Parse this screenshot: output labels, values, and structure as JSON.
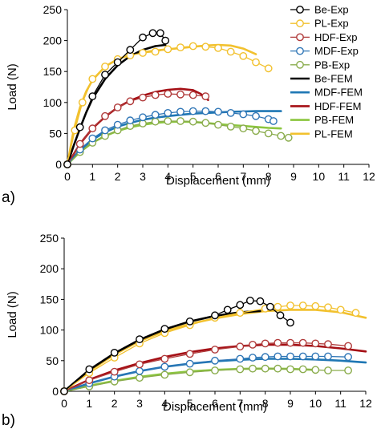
{
  "chart_data": [
    {
      "type": "line",
      "panel_label": "a)",
      "xlabel": "Displacement (mm)",
      "ylabel": "Load (N)",
      "xlim": [
        0,
        12
      ],
      "ylim": [
        0,
        250
      ],
      "xticks": [
        0,
        1,
        2,
        3,
        4,
        5,
        6,
        7,
        8,
        9,
        10,
        11,
        12
      ],
      "yticks": [
        0,
        50,
        100,
        150,
        200,
        250
      ],
      "grid": false,
      "legend_position": "right",
      "legend": [
        {
          "name": "Be-Exp",
          "color": "#000000",
          "style": "markers"
        },
        {
          "name": "PL-Exp",
          "color": "#f2c12e",
          "style": "markers"
        },
        {
          "name": "HDF-Exp",
          "color": "#b03a3a",
          "style": "markers"
        },
        {
          "name": "MDF-Exp",
          "color": "#2e75b6",
          "style": "markers"
        },
        {
          "name": "PB-Exp",
          "color": "#8aac4c",
          "style": "markers"
        },
        {
          "name": "Be-FEM",
          "color": "#000000",
          "style": "line"
        },
        {
          "name": "MDF-FEM",
          "color": "#1f77b4",
          "style": "line"
        },
        {
          "name": "HDF-FEM",
          "color": "#a50f15",
          "style": "line"
        },
        {
          "name": "PB-FEM",
          "color": "#8cc63f",
          "style": "line"
        },
        {
          "name": "PL-FEM",
          "color": "#f2c12e",
          "style": "line"
        }
      ],
      "series": [
        {
          "name": "PB-FEM",
          "style": "line",
          "color": "#8cc63f",
          "x": [
            0,
            0.5,
            1,
            1.5,
            2,
            2.5,
            3,
            3.5,
            4,
            4.5,
            5,
            5.5,
            6,
            6.5,
            7,
            7.5,
            8,
            8.5
          ],
          "y": [
            0,
            20,
            35,
            46,
            54,
            60,
            64,
            67,
            68.5,
            69,
            68.5,
            67,
            65,
            63.5,
            62,
            60.5,
            59,
            58
          ]
        },
        {
          "name": "MDF-FEM",
          "style": "line",
          "color": "#1f77b4",
          "x": [
            0,
            0.5,
            1,
            1.5,
            2,
            2.5,
            3,
            3.5,
            4,
            4.5,
            5,
            5.5,
            6,
            6.5,
            7,
            7.5,
            8,
            8.5
          ],
          "y": [
            0,
            23,
            40,
            52,
            61,
            67,
            72,
            75.5,
            78,
            80,
            82,
            83,
            84,
            85,
            85.5,
            86,
            86,
            86
          ]
        },
        {
          "name": "HDF-FEM",
          "style": "line",
          "color": "#a50f15",
          "x": [
            0,
            0.5,
            1,
            1.5,
            2,
            2.5,
            3,
            3.5,
            4,
            4.5,
            5,
            5.3,
            5.6
          ],
          "y": [
            0,
            33,
            58,
            77,
            92,
            103,
            111,
            117,
            120.5,
            122,
            120,
            114,
            104
          ]
        },
        {
          "name": "PL-FEM",
          "style": "line",
          "color": "#f2c12e",
          "x": [
            0,
            0.25,
            0.5,
            0.75,
            1,
            1.5,
            2,
            2.5,
            3,
            3.5,
            4,
            4.5,
            5,
            5.5,
            6,
            6.5,
            7,
            7.5
          ],
          "y": [
            0,
            55,
            92,
            118,
            136,
            158,
            170,
            177,
            181,
            184,
            186,
            188,
            190,
            192,
            193,
            192,
            187,
            178
          ]
        },
        {
          "name": "Be-FEM",
          "style": "line",
          "color": "#000000",
          "x": [
            0,
            0.25,
            0.5,
            0.75,
            1,
            1.5,
            2,
            2.5,
            3,
            3.5,
            3.9
          ],
          "y": [
            0,
            30,
            58,
            84,
            106,
            138,
            160,
            175,
            185,
            191,
            193
          ]
        },
        {
          "name": "PB-Exp",
          "style": "markers",
          "color": "#8aac4c",
          "x": [
            0,
            0.5,
            1,
            1.5,
            2,
            2.5,
            3,
            3.5,
            4,
            4.5,
            5,
            5.5,
            6,
            6.5,
            7,
            7.5,
            8,
            8.5,
            8.8
          ],
          "y": [
            0,
            20,
            35,
            46,
            55,
            62,
            66,
            69,
            70,
            70,
            69,
            67,
            64,
            61,
            58,
            54,
            50,
            46,
            43
          ]
        },
        {
          "name": "MDF-Exp",
          "style": "markers",
          "color": "#2e75b6",
          "x": [
            0,
            0.5,
            1,
            1.5,
            2,
            2.5,
            3,
            3.5,
            4,
            4.5,
            5,
            5.5,
            6,
            6.5,
            7,
            7.5,
            8,
            8.2
          ],
          "y": [
            0,
            24,
            42,
            55,
            64,
            71,
            76,
            80,
            83,
            85,
            86,
            86,
            85,
            83,
            81,
            78,
            73,
            70
          ]
        },
        {
          "name": "HDF-Exp",
          "style": "markers",
          "color": "#b03a3a",
          "x": [
            0,
            0.5,
            1,
            1.5,
            2,
            2.5,
            3,
            3.5,
            4,
            4.5,
            5,
            5.5
          ],
          "y": [
            0,
            33,
            58,
            78,
            92,
            102,
            108,
            112,
            114,
            113,
            112,
            110
          ]
        },
        {
          "name": "PL-Exp",
          "style": "markers",
          "color": "#f2c12e",
          "x": [
            0,
            0.3,
            0.6,
            1,
            1.5,
            2,
            2.5,
            3,
            3.5,
            4,
            4.5,
            5,
            5.5,
            6,
            6.5,
            7,
            7.5,
            8
          ],
          "y": [
            0,
            55,
            100,
            138,
            158,
            170,
            176,
            180,
            182,
            186,
            189,
            191,
            190,
            188,
            182,
            175,
            165,
            155
          ]
        },
        {
          "name": "Be-Exp",
          "style": "markers",
          "color": "#000000",
          "x": [
            0,
            0.5,
            1,
            1.5,
            2,
            2.5,
            3,
            3.4,
            3.7,
            3.9
          ],
          "y": [
            0,
            60,
            110,
            145,
            165,
            185,
            205,
            212,
            212,
            200
          ]
        }
      ]
    },
    {
      "type": "line",
      "panel_label": "b)",
      "xlabel": "Displacement (mm)",
      "ylabel": "Load (N)",
      "xlim": [
        0,
        12
      ],
      "ylim": [
        0,
        250
      ],
      "xticks": [
        0,
        1,
        2,
        3,
        4,
        5,
        6,
        7,
        8,
        9,
        10,
        11,
        12
      ],
      "yticks": [
        0,
        50,
        100,
        150,
        200,
        250
      ],
      "grid": false,
      "series": [
        {
          "name": "PB-FEM",
          "style": "line",
          "color": "#8cc63f",
          "x": [
            0,
            1,
            2,
            3,
            4,
            5,
            6,
            7,
            8,
            9,
            10
          ],
          "y": [
            0,
            9,
            17,
            23.5,
            28.5,
            32.5,
            35,
            36.5,
            37,
            36.5,
            35
          ]
        },
        {
          "name": "MDF-FEM",
          "style": "line",
          "color": "#1f77b4",
          "x": [
            0,
            1,
            2,
            3,
            4,
            5,
            6,
            7,
            8,
            9,
            10,
            11,
            12
          ],
          "y": [
            0,
            13,
            24,
            33,
            40,
            45,
            49,
            51.5,
            53,
            53,
            52,
            50,
            47
          ]
        },
        {
          "name": "HDF-FEM",
          "style": "line",
          "color": "#a50f15",
          "x": [
            0,
            1,
            2,
            3,
            4,
            5,
            6,
            7,
            8,
            9,
            10,
            11,
            12
          ],
          "y": [
            0,
            19,
            34,
            46,
            56,
            64,
            70,
            74,
            76,
            76,
            74,
            70,
            65
          ]
        },
        {
          "name": "PL-FEM",
          "style": "line",
          "color": "#f2c12e",
          "x": [
            0,
            1,
            2,
            3,
            4,
            5,
            6,
            7,
            8,
            9,
            10,
            11,
            12
          ],
          "y": [
            0,
            33,
            60,
            82,
            98,
            110,
            119,
            126,
            131,
            133,
            133,
            129,
            120
          ]
        },
        {
          "name": "Be-FEM",
          "style": "line",
          "color": "#000000",
          "x": [
            0,
            1,
            2,
            3,
            4,
            5,
            6,
            7,
            7.8
          ],
          "y": [
            0,
            35,
            62,
            84,
            101,
            114,
            123,
            129,
            131
          ]
        },
        {
          "name": "PB-Exp",
          "style": "markers",
          "color": "#8aac4c",
          "x": [
            0,
            1,
            2,
            3,
            4,
            5,
            6,
            7,
            7.5,
            8,
            8.5,
            9,
            9.5,
            10,
            10.5,
            11.3
          ],
          "y": [
            0,
            8,
            16,
            22,
            27,
            31,
            34,
            36,
            37,
            37,
            37,
            36,
            36,
            35,
            34,
            34
          ]
        },
        {
          "name": "MDF-Exp",
          "style": "markers",
          "color": "#2e75b6",
          "x": [
            0,
            1,
            2,
            3,
            4,
            5,
            6,
            7,
            7.5,
            8,
            8.5,
            9,
            9.5,
            10,
            10.5,
            11.3
          ],
          "y": [
            0,
            13,
            24,
            33,
            40,
            45,
            50,
            53,
            55,
            56,
            57,
            57,
            57,
            57,
            57,
            56
          ]
        },
        {
          "name": "HDF-Exp",
          "style": "markers",
          "color": "#b03a3a",
          "x": [
            0,
            1,
            2,
            3,
            4,
            5,
            6,
            7,
            7.5,
            8,
            8.5,
            9,
            9.5,
            10,
            10.5,
            11.3
          ],
          "y": [
            0,
            18,
            32,
            44,
            53,
            61,
            68,
            73,
            76,
            78,
            79,
            79,
            79,
            78,
            77,
            74
          ]
        },
        {
          "name": "PL-Exp",
          "style": "markers",
          "color": "#f2c12e",
          "x": [
            0,
            1,
            2,
            3,
            4,
            5,
            6,
            7,
            8,
            8.5,
            9,
            9.5,
            10,
            10.5,
            11,
            11.6
          ],
          "y": [
            0,
            30,
            55,
            78,
            95,
            108,
            120,
            128,
            135,
            138,
            140,
            140,
            139,
            137,
            133,
            128
          ]
        },
        {
          "name": "Be-Exp",
          "style": "markers",
          "color": "#000000",
          "x": [
            0,
            1,
            2,
            3,
            4,
            5,
            6,
            6.5,
            7,
            7.4,
            7.8,
            8.2,
            8.6,
            9
          ],
          "y": [
            0,
            36,
            63,
            85,
            102,
            114,
            124,
            133,
            141,
            148,
            147,
            138,
            124,
            112
          ]
        }
      ]
    }
  ]
}
